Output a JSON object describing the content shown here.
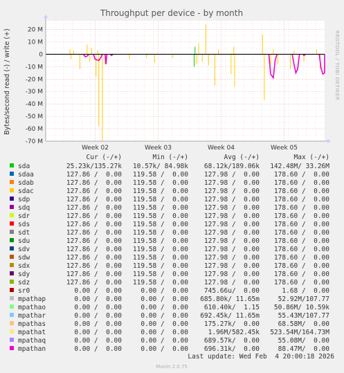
{
  "chart_data": {
    "type": "line",
    "title": "Throughput per device - by month",
    "ylabel": "Bytes/second read (-) / write (+)",
    "side_label": "RRDTOOL / TOBI OETIKER",
    "ylim": [
      -70000000,
      27000000
    ],
    "yticks": [
      {
        "v": 20000000,
        "label": "20 M"
      },
      {
        "v": 10000000,
        "label": "10 M"
      },
      {
        "v": 0,
        "label": "0"
      },
      {
        "v": -10000000,
        "label": "-10 M"
      },
      {
        "v": -20000000,
        "label": "-20 M"
      },
      {
        "v": -30000000,
        "label": "-30 M"
      },
      {
        "v": -40000000,
        "label": "-40 M"
      },
      {
        "v": -50000000,
        "label": "-50 M"
      },
      {
        "v": -60000000,
        "label": "-60 M"
      },
      {
        "v": -70000000,
        "label": "-70 M"
      }
    ],
    "xlim": [
      0,
      31
    ],
    "xticks": [
      {
        "v": 5.5,
        "label": "Week 02"
      },
      {
        "v": 12.5,
        "label": "Week 03"
      },
      {
        "v": 19.5,
        "label": "Week 04"
      },
      {
        "v": 26.5,
        "label": "Week 05"
      }
    ],
    "grid": true,
    "legend_header": {
      "cur": "Cur (-/+)",
      "min": "Min (-/+)",
      "avg": "Avg (-/+)",
      "max": "Max (-/+)"
    },
    "series": [
      {
        "name": "sda",
        "color": "#00cc00",
        "cur": "25.23k/135.27k",
        "min": "10.57k/ 84.98k",
        "avg": "68.12k/189.06k",
        "max": "142.48M/ 33.26M"
      },
      {
        "name": "sdaa",
        "color": "#0066b3",
        "cur": "127.86 /  0.00",
        "min": "119.58 /  0.00",
        "avg": "127.98 /  0.00",
        "max": "178.60 /  0.00"
      },
      {
        "name": "sdab",
        "color": "#ff8000",
        "cur": "127.86 /  0.00",
        "min": "119.58 /  0.00",
        "avg": "127.98 /  0.00",
        "max": "178.60 /  0.00"
      },
      {
        "name": "sdac",
        "color": "#ffcc00",
        "cur": "127.86 /  0.00",
        "min": "119.58 /  0.00",
        "avg": "127.98 /  0.00",
        "max": "178.60 /  0.00"
      },
      {
        "name": "sdp",
        "color": "#330099",
        "cur": "127.86 /  0.00",
        "min": "119.58 /  0.00",
        "avg": "127.98 /  0.00",
        "max": "178.60 /  0.00"
      },
      {
        "name": "sdq",
        "color": "#990099",
        "cur": "127.86 /  0.00",
        "min": "119.58 /  0.00",
        "avg": "127.98 /  0.00",
        "max": "178.60 /  0.00"
      },
      {
        "name": "sdr",
        "color": "#ccff00",
        "cur": "127.86 /  0.00",
        "min": "119.58 /  0.00",
        "avg": "127.98 /  0.00",
        "max": "178.60 /  0.00"
      },
      {
        "name": "sds",
        "color": "#ff0000",
        "cur": "127.86 /  0.00",
        "min": "119.58 /  0.00",
        "avg": "127.98 /  0.00",
        "max": "178.60 /  0.00"
      },
      {
        "name": "sdt",
        "color": "#808080",
        "cur": "127.86 /  0.00",
        "min": "119.58 /  0.00",
        "avg": "127.98 /  0.00",
        "max": "178.60 /  0.00"
      },
      {
        "name": "sdu",
        "color": "#008f00",
        "cur": "127.86 /  0.00",
        "min": "119.58 /  0.00",
        "avg": "127.98 /  0.00",
        "max": "178.60 /  0.00"
      },
      {
        "name": "sdv",
        "color": "#00487d",
        "cur": "127.86 /  0.00",
        "min": "119.58 /  0.00",
        "avg": "127.98 /  0.00",
        "max": "178.60 /  0.00"
      },
      {
        "name": "sdw",
        "color": "#b35a00",
        "cur": "127.86 /  0.00",
        "min": "119.58 /  0.00",
        "avg": "127.98 /  0.00",
        "max": "178.60 /  0.00"
      },
      {
        "name": "sdx",
        "color": "#b38f00",
        "cur": "127.86 /  0.00",
        "min": "119.58 /  0.00",
        "avg": "127.98 /  0.00",
        "max": "178.60 /  0.00"
      },
      {
        "name": "sdy",
        "color": "#6b006b",
        "cur": "127.86 /  0.00",
        "min": "119.58 /  0.00",
        "avg": "127.98 /  0.00",
        "max": "178.60 /  0.00"
      },
      {
        "name": "sdz",
        "color": "#8fb300",
        "cur": "127.86 /  0.00",
        "min": "119.58 /  0.00",
        "avg": "127.98 /  0.00",
        "max": "178.60 /  0.00"
      },
      {
        "name": "sr0",
        "color": "#b30000",
        "cur": "0.00 /  0.00",
        "min": "0.00 /  0.00",
        "avg": "745.66u/  0.00",
        "max": "1.68 /  0.00"
      },
      {
        "name": "mpathap",
        "color": "#bebebe",
        "cur": "0.00 /  0.00",
        "min": "0.00 /  0.00",
        "avg": "685.80k/ 11.65m",
        "max": "52.92M/107.77"
      },
      {
        "name": "mpathao",
        "color": "#80ff80",
        "cur": "0.00 /  0.00",
        "min": "0.00 /  0.00",
        "avg": "610.40k/  1.15",
        "max": "50.86M/ 10.59k"
      },
      {
        "name": "mpathar",
        "color": "#80c9ff",
        "cur": "0.00 /  0.00",
        "min": "0.00 /  0.00",
        "avg": "692.45k/ 11.65m",
        "max": "55.43M/107.77"
      },
      {
        "name": "mpathas",
        "color": "#ffc080",
        "cur": "0.00 /  0.00",
        "min": "0.00 /  0.00",
        "avg": "175.27k/  0.00",
        "max": "68.58M/  0.00"
      },
      {
        "name": "mpathat",
        "color": "#ffe680",
        "cur": "0.00 /  0.00",
        "min": "0.00 /  0.00",
        "avg": "1.96M/582.45k",
        "max": "523.54M/164.73M"
      },
      {
        "name": "mpathaq",
        "color": "#aa80ff",
        "cur": "0.00 /  0.00",
        "min": "0.00 /  0.00",
        "avg": "689.57k/  0.00",
        "max": "55.08M/  0.00"
      },
      {
        "name": "mpathan",
        "color": "#ee00cc",
        "cur": "0.00 /  0.00",
        "min": "0.00 /  0.00",
        "avg": "696.31k/  0.00",
        "max": "88.47M/  0.00"
      }
    ],
    "spikes": [
      {
        "x": 2.7,
        "v": 4000000,
        "c": "#ffcc00"
      },
      {
        "x": 3.1,
        "v": 3000000,
        "c": "#ffcc00"
      },
      {
        "x": 4.6,
        "v": 8000000,
        "c": "#ffcc00"
      },
      {
        "x": 5.1,
        "v": 5000000,
        "c": "#ffcc00"
      },
      {
        "x": 5.8,
        "v": 3000000,
        "c": "#ffcc00"
      },
      {
        "x": 16.6,
        "v": 6000000,
        "c": "#00cc00"
      },
      {
        "x": 17.0,
        "v": 9000000,
        "c": "#ffcc00"
      },
      {
        "x": 17.8,
        "v": 24000000,
        "c": "#ffcc00"
      },
      {
        "x": 19.2,
        "v": 4000000,
        "c": "#ffcc00"
      },
      {
        "x": 20.9,
        "v": 6000000,
        "c": "#ffcc00"
      },
      {
        "x": 24.1,
        "v": 16000000,
        "c": "#ffcc00"
      },
      {
        "x": 25.3,
        "v": 4000000,
        "c": "#ffcc00"
      },
      {
        "x": 27.6,
        "v": 3000000,
        "c": "#ffcc00"
      },
      {
        "x": 30.1,
        "v": 4000000,
        "c": "#ffcc00"
      },
      {
        "x": 2.8,
        "v": -4000000,
        "c": "#ffcc00"
      },
      {
        "x": 3.8,
        "v": -12000000,
        "c": "#ffcc00"
      },
      {
        "x": 4.9,
        "v": -6000000,
        "c": "#ffcc00"
      },
      {
        "x": 5.6,
        "v": -18000000,
        "c": "#ffcc00"
      },
      {
        "x": 5.9,
        "v": -58000000,
        "c": "#ffcc00"
      },
      {
        "x": 6.3,
        "v": -70000000,
        "c": "#ffcc00"
      },
      {
        "x": 6.6,
        "v": -8000000,
        "c": "#ffcc00"
      },
      {
        "x": 9.3,
        "v": -4000000,
        "c": "#ffcc00"
      },
      {
        "x": 11.2,
        "v": -3000000,
        "c": "#ffcc00"
      },
      {
        "x": 12.1,
        "v": -7000000,
        "c": "#ffcc00"
      },
      {
        "x": 14.1,
        "v": -3000000,
        "c": "#ffcc00"
      },
      {
        "x": 16.5,
        "v": -10000000,
        "c": "#00cc00"
      },
      {
        "x": 16.8,
        "v": -8000000,
        "c": "#ffcc00"
      },
      {
        "x": 17.4,
        "v": -6000000,
        "c": "#ffcc00"
      },
      {
        "x": 18.1,
        "v": -9000000,
        "c": "#ffcc00"
      },
      {
        "x": 18.8,
        "v": -25000000,
        "c": "#ffcc00"
      },
      {
        "x": 20.6,
        "v": -16000000,
        "c": "#ffcc00"
      },
      {
        "x": 21.0,
        "v": -26000000,
        "c": "#ffcc00"
      },
      {
        "x": 24.3,
        "v": -37000000,
        "c": "#ffcc00"
      },
      {
        "x": 25.0,
        "v": -8000000,
        "c": "#ffcc00"
      },
      {
        "x": 25.8,
        "v": -8000000,
        "c": "#ffcc00"
      },
      {
        "x": 27.2,
        "v": -12000000,
        "c": "#ffcc00"
      },
      {
        "x": 28.7,
        "v": -6000000,
        "c": "#ffcc00"
      },
      {
        "x": 30.5,
        "v": -12000000,
        "c": "#ffcc00"
      }
    ],
    "magenta_segments": [
      [
        [
          4.2,
          0
        ],
        [
          4.4,
          -2000000
        ],
        [
          4.6,
          -1500000
        ],
        [
          4.8,
          0
        ]
      ],
      [
        [
          5.3,
          0
        ],
        [
          5.5,
          -4000000
        ],
        [
          5.9,
          -5000000
        ],
        [
          6.1,
          -3000000
        ],
        [
          6.3,
          0
        ]
      ],
      [
        [
          6.6,
          0
        ],
        [
          6.7,
          -8000000
        ],
        [
          6.8,
          0
        ]
      ],
      [
        [
          7.2,
          0
        ],
        [
          7.3,
          -1000000
        ],
        [
          7.5,
          0
        ]
      ],
      [
        [
          24.8,
          0
        ],
        [
          25.0,
          -16000000
        ],
        [
          25.3,
          -19000000
        ],
        [
          25.5,
          -5000000
        ],
        [
          25.7,
          0
        ]
      ],
      [
        [
          27.4,
          0
        ],
        [
          27.6,
          -8000000
        ],
        [
          27.8,
          -15000000
        ],
        [
          28.0,
          -12000000
        ],
        [
          28.2,
          0
        ]
      ],
      [
        [
          28.6,
          0
        ],
        [
          28.7,
          -1000000
        ],
        [
          28.9,
          0
        ]
      ],
      [
        [
          30.4,
          0
        ],
        [
          30.6,
          -11000000
        ],
        [
          30.8,
          -16000000
        ],
        [
          31.0,
          -15000000
        ],
        [
          31.0,
          0
        ]
      ]
    ],
    "lastupdate": "Last update: Wed Feb  4 20:00:18 2026",
    "footer": "Munin 2.0.75"
  }
}
